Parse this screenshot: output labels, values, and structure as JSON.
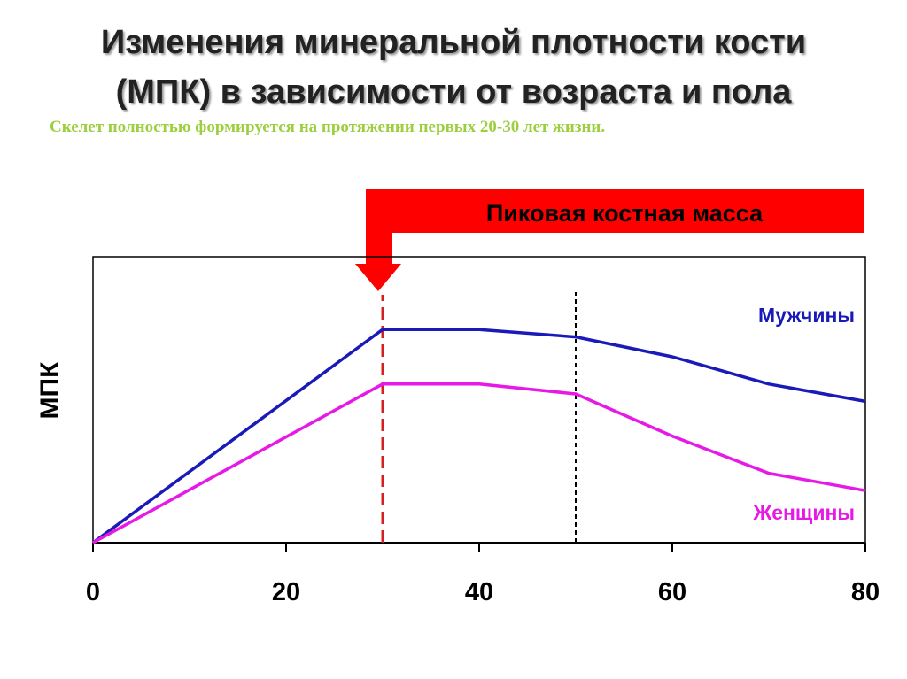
{
  "slide": {
    "title_line1": "Изменения минеральной плотности кости",
    "title_line2": "(МПК) в зависимости от возраста и пола",
    "subtitle": "Скелет полностью формируется на протяжении первых 20-30 лет жизни."
  },
  "banner": {
    "text": "Пиковая костная масса",
    "color": "#ff0000"
  },
  "colors": {
    "men": "#1a1ab8",
    "women": "#e619e6",
    "peak_marker": "#d42020",
    "axis": "#000000",
    "subtitle": "#9ccf3f"
  },
  "chart_data": {
    "type": "line",
    "title": "",
    "xlabel": "",
    "ylabel": "МПК",
    "xlim": [
      0,
      80
    ],
    "ylim": [
      0,
      100
    ],
    "x_ticks": [
      0,
      20,
      40,
      60,
      80
    ],
    "x_tick_labels": [
      "0",
      "20",
      "40",
      "60",
      "80"
    ],
    "grid": false,
    "series": [
      {
        "name": "Мужчины",
        "color": "#1a1ab8",
        "x": [
          0,
          30,
          40,
          50,
          60,
          70,
          80
        ],
        "y": [
          0,
          86,
          86,
          83,
          75,
          64,
          57
        ]
      },
      {
        "name": "Женщины",
        "color": "#e619e6",
        "x": [
          0,
          30,
          40,
          50,
          60,
          70,
          80
        ],
        "y": [
          0,
          64,
          64,
          60,
          43,
          28,
          21
        ]
      }
    ],
    "reference_lines": [
      {
        "x": 30,
        "style": "dashed",
        "color": "#d42020"
      },
      {
        "x": 50,
        "style": "dotted",
        "color": "#000000"
      }
    ]
  }
}
